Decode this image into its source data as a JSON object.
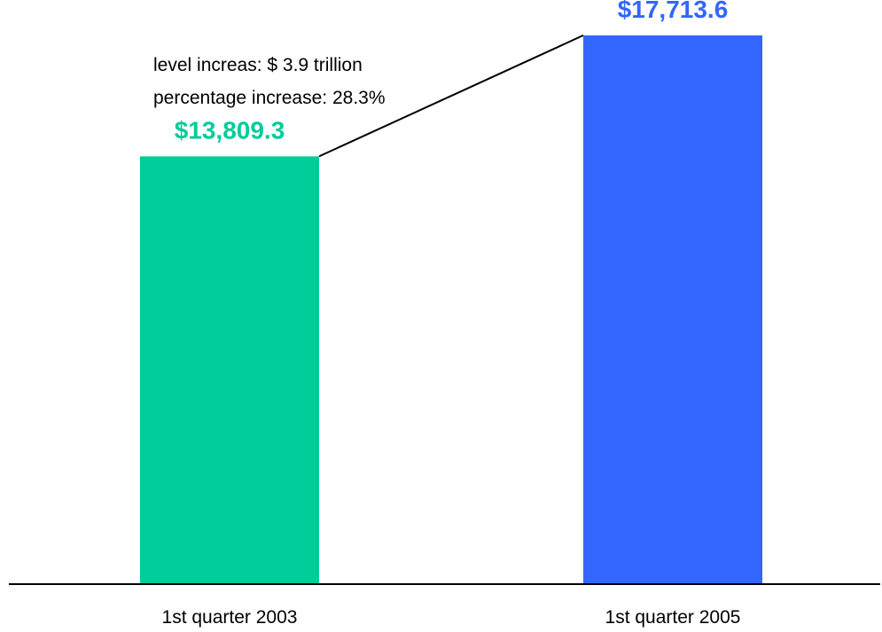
{
  "chart_data": {
    "type": "bar",
    "title": "",
    "xlabel": "",
    "ylabel": "",
    "categories": [
      "1st quarter 2003",
      "1st quarter 2005"
    ],
    "values": [
      13809.3,
      17713.6
    ],
    "value_labels": [
      "$13,809.3",
      "$17,713.6"
    ],
    "bar_colors": [
      "#00cc99",
      "#3366ff"
    ],
    "ylim": [
      0,
      20000
    ],
    "grid": false,
    "legend": "none",
    "annotation": {
      "lines": [
        "level increas: $ 3.9 trillion",
        "percentage increase: 28.3%"
      ],
      "connects": [
        "1st quarter 2003",
        "1st quarter 2005"
      ]
    }
  }
}
